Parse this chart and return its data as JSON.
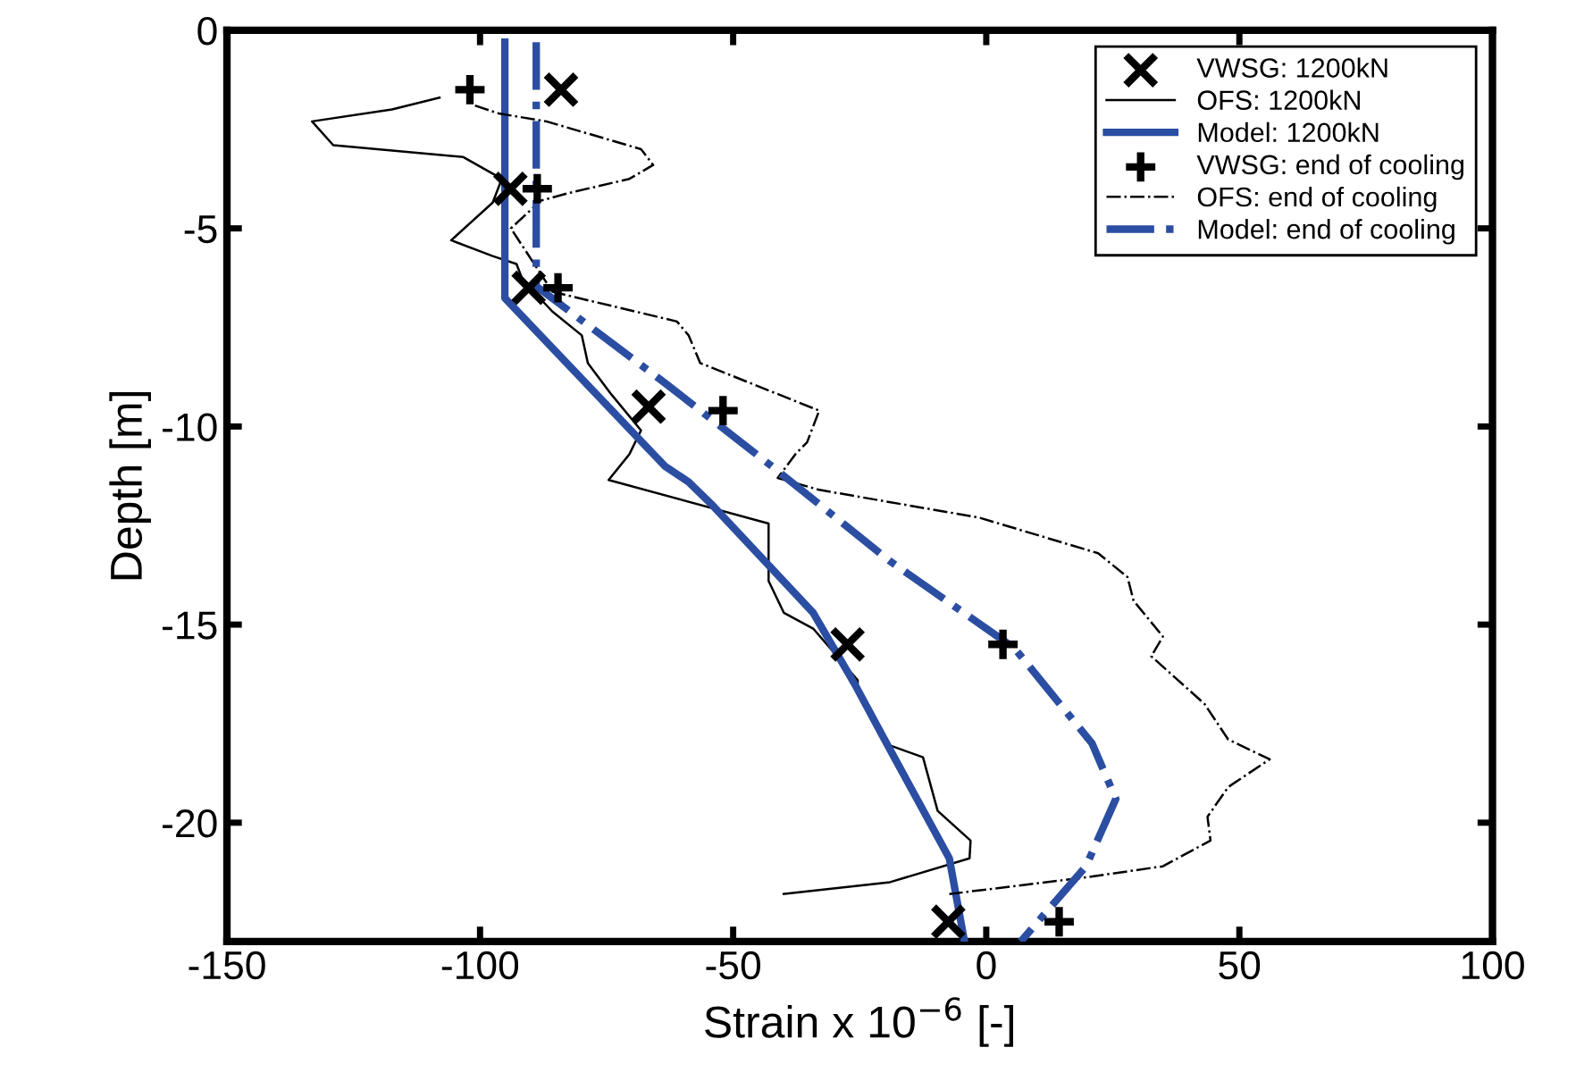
{
  "chart_data": {
    "type": "line",
    "xlabel": "Strain x 10$^{−6}$ [-]",
    "ylabel": "Depth [m]",
    "xlim": [
      -150,
      100
    ],
    "xticks": [
      -150,
      -100,
      -50,
      0,
      50,
      100
    ],
    "ylim": [
      -23,
      0
    ],
    "yticks": [
      -20,
      -15,
      -10,
      -5,
      0
    ],
    "grid": false,
    "legend": "top right",
    "series": [
      {
        "name": "VWSG: 1200kN",
        "type": "scatter",
        "marker": "cross",
        "color": "#000000",
        "x": [
          -84,
          -94,
          -90.4,
          -66.7,
          -27.4,
          -7.5
        ],
        "values": [
          -1.5,
          -4,
          -6.5,
          -9.5,
          -15.5,
          -22.5
        ]
      },
      {
        "name": "OFS: 1200kN",
        "line_style": "solid",
        "color": "#000000",
        "x": [
          -108,
          -117.4,
          -133.2,
          -129,
          -103.3,
          -95.7,
          -97.5,
          -105.7,
          -97.5,
          -92.8,
          -91.6,
          -85.7,
          -79.9,
          -78.7,
          -74,
          -68.2,
          -70.5,
          -74.6,
          -43,
          -43,
          -40,
          -34.2,
          -25.4,
          -25.4,
          -20.1,
          -12.5,
          -9.6,
          -3.1,
          -3.3,
          -19,
          -40
        ],
        "values": [
          -1.7,
          -2,
          -2.3,
          -2.9,
          -3.2,
          -3.75,
          -4.35,
          -5.3,
          -5.7,
          -5.9,
          -6.3,
          -7.1,
          -7.7,
          -8.4,
          -9.2,
          -10.1,
          -10.7,
          -11.35,
          -12.45,
          -13.9,
          -14.7,
          -15.1,
          -16.4,
          -16.7,
          -18,
          -18.35,
          -19.7,
          -20.45,
          -20.9,
          -21.5,
          -21.8
        ]
      },
      {
        "name": "Model: 1200kN",
        "line_style": "solid",
        "color": "#2b4ea2",
        "x": [
          -95.1,
          -95.1,
          -63.5,
          -58.8,
          -54,
          -34.2,
          -26,
          -20.1,
          -7.3,
          -4.3
        ],
        "values": [
          -0.3,
          -6.76,
          -11,
          -11.4,
          -12,
          -14.7,
          -16.5,
          -17.9,
          -20.9,
          -23
        ]
      },
      {
        "name": "VWSG: end of cooling",
        "type": "scatter",
        "marker": "plus",
        "color": "#000000",
        "x": [
          -102,
          -88.7,
          -84.6,
          -52,
          3.3,
          14.4
        ],
        "values": [
          -1.5,
          -4,
          -6.5,
          -9.6,
          -15.5,
          -22.5
        ]
      },
      {
        "name": "OFS: end of cooling",
        "line_style": "dashdot",
        "color": "#000000",
        "x": [
          -101,
          -96.3,
          -86.9,
          -68.2,
          -65.8,
          -70.5,
          -82.2,
          -88,
          -93.9,
          -85.7,
          -61.1,
          -58.8,
          -56.5,
          -33,
          -35.4,
          -37.7,
          -41.2,
          -33,
          -1.4,
          22.1,
          27.9,
          29.1,
          34.9,
          32.6,
          43.1,
          47.8,
          56,
          47.8,
          43.7,
          44.3,
          34.9,
          18.5,
          -7.3
        ],
        "values": [
          -1.9,
          -2.1,
          -2.3,
          -3,
          -3.4,
          -3.75,
          -4.1,
          -4.3,
          -5,
          -6.6,
          -7.35,
          -7.7,
          -8.4,
          -9.6,
          -10.4,
          -10.7,
          -11.3,
          -11.6,
          -12.3,
          -13.2,
          -13.8,
          -14.4,
          -15.3,
          -15.8,
          -17,
          -17.9,
          -18.4,
          -19.1,
          -19.85,
          -20.45,
          -21.1,
          -21.4,
          -21.8
        ]
      },
      {
        "name": "Model: end of cooling",
        "line_style": "dashdot",
        "color": "#2b4ea2",
        "x": [
          -88.9,
          -88.9,
          -63.5,
          -42.4,
          -19,
          5.6,
          20.9,
          25.6,
          19.7,
          6.8
        ],
        "values": [
          -0.3,
          -6.46,
          -8.9,
          -11,
          -13.4,
          -15.6,
          -18,
          -19.4,
          -21.1,
          -23
        ]
      }
    ]
  }
}
